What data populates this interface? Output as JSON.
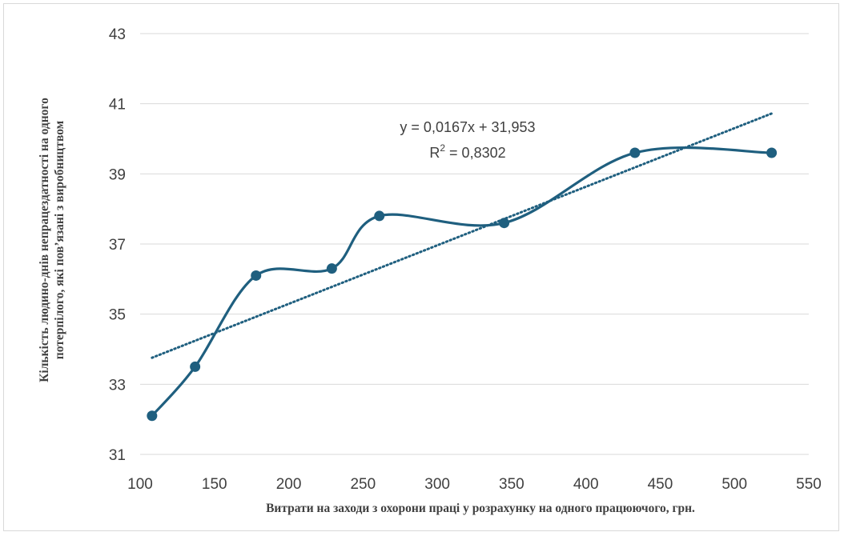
{
  "chart_data": {
    "type": "scatter",
    "xlabel": "Витрати   на заходи з охорони праці у розрахунку на одного працюючого, грн.",
    "ylabel_lines": [
      "Кількість людино-днів непрацездатності на одного",
      "потерпілого, які пов’язані   з виробництвом"
    ],
    "xlim": [
      100,
      550
    ],
    "ylim": [
      31,
      43
    ],
    "x_ticks": [
      100,
      150,
      200,
      250,
      300,
      350,
      400,
      450,
      500,
      550
    ],
    "y_ticks": [
      31,
      33,
      35,
      37,
      39,
      41,
      43
    ],
    "grid": "horizontal",
    "series": [
      {
        "color": "#1f5f7f",
        "smooth": true,
        "markers": true,
        "points": [
          {
            "x": 108,
            "y": 32.1
          },
          {
            "x": 137,
            "y": 33.5
          },
          {
            "x": 178,
            "y": 36.1
          },
          {
            "x": 229,
            "y": 36.3
          },
          {
            "x": 261,
            "y": 37.8
          },
          {
            "x": 345,
            "y": 37.6
          },
          {
            "x": 433,
            "y": 39.6
          },
          {
            "x": 525,
            "y": 39.6
          }
        ]
      }
    ],
    "trendline": {
      "type": "linear",
      "slope": 0.0167,
      "intercept": 31.953,
      "x_range": [
        108,
        525
      ],
      "color": "#1f5f7f",
      "style": "dotted"
    },
    "annotations": {
      "equation": "y = 0,0167x + 31,953",
      "r2_prefix": "R",
      "r2_sup": "2",
      "r2_value": " = 0,8302"
    }
  }
}
